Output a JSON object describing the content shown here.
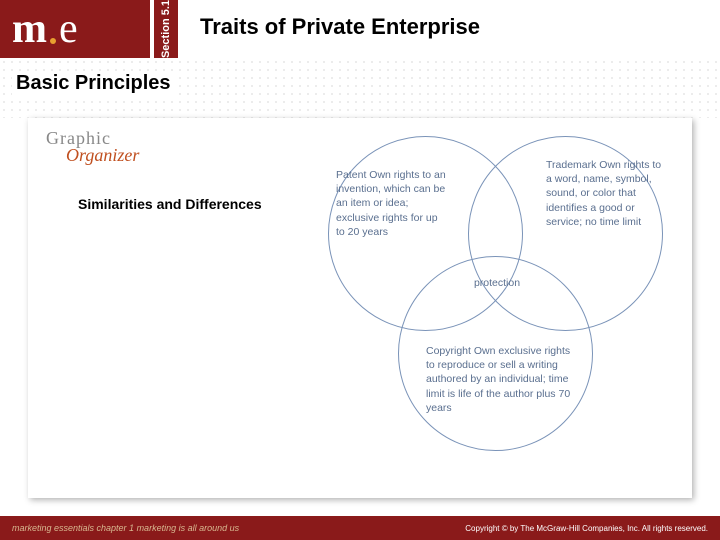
{
  "header": {
    "logo_m": "m",
    "logo_e": "e",
    "section_label": "Section 5.1",
    "title": "Traits of Private Enterprise"
  },
  "subtitle": "Basic Principles",
  "graphic_organizer": {
    "line1": "Graphic",
    "line2": "Organizer"
  },
  "similarities_label": "Similarities and Differences",
  "venn": {
    "circle_stroke": "#7a93b8",
    "text_color": "#5a6f8f",
    "patent": "Patent Own rights to an invention, which can be an item or idea; exclusive rights for up to 20 years",
    "trademark": "Trademark Own rights to a word, name, symbol, sound, or color that identifies a good or service; no time limit",
    "center": "protection",
    "copyright": "Copyright Own exclusive rights to reproduce or sell a writing authored by an individual; time limit is life of the author plus 70 years"
  },
  "footer": {
    "left": "marketing essentials  chapter 1  marketing is all around us",
    "right": "Copyright © by The McGraw-Hill Companies, Inc. All rights reserved."
  },
  "colors": {
    "maroon": "#8a1a1a",
    "gold": "#e8a030",
    "venn_blue": "#5a6f8f",
    "organizer_gray": "#888",
    "organizer_orange": "#c05020"
  }
}
